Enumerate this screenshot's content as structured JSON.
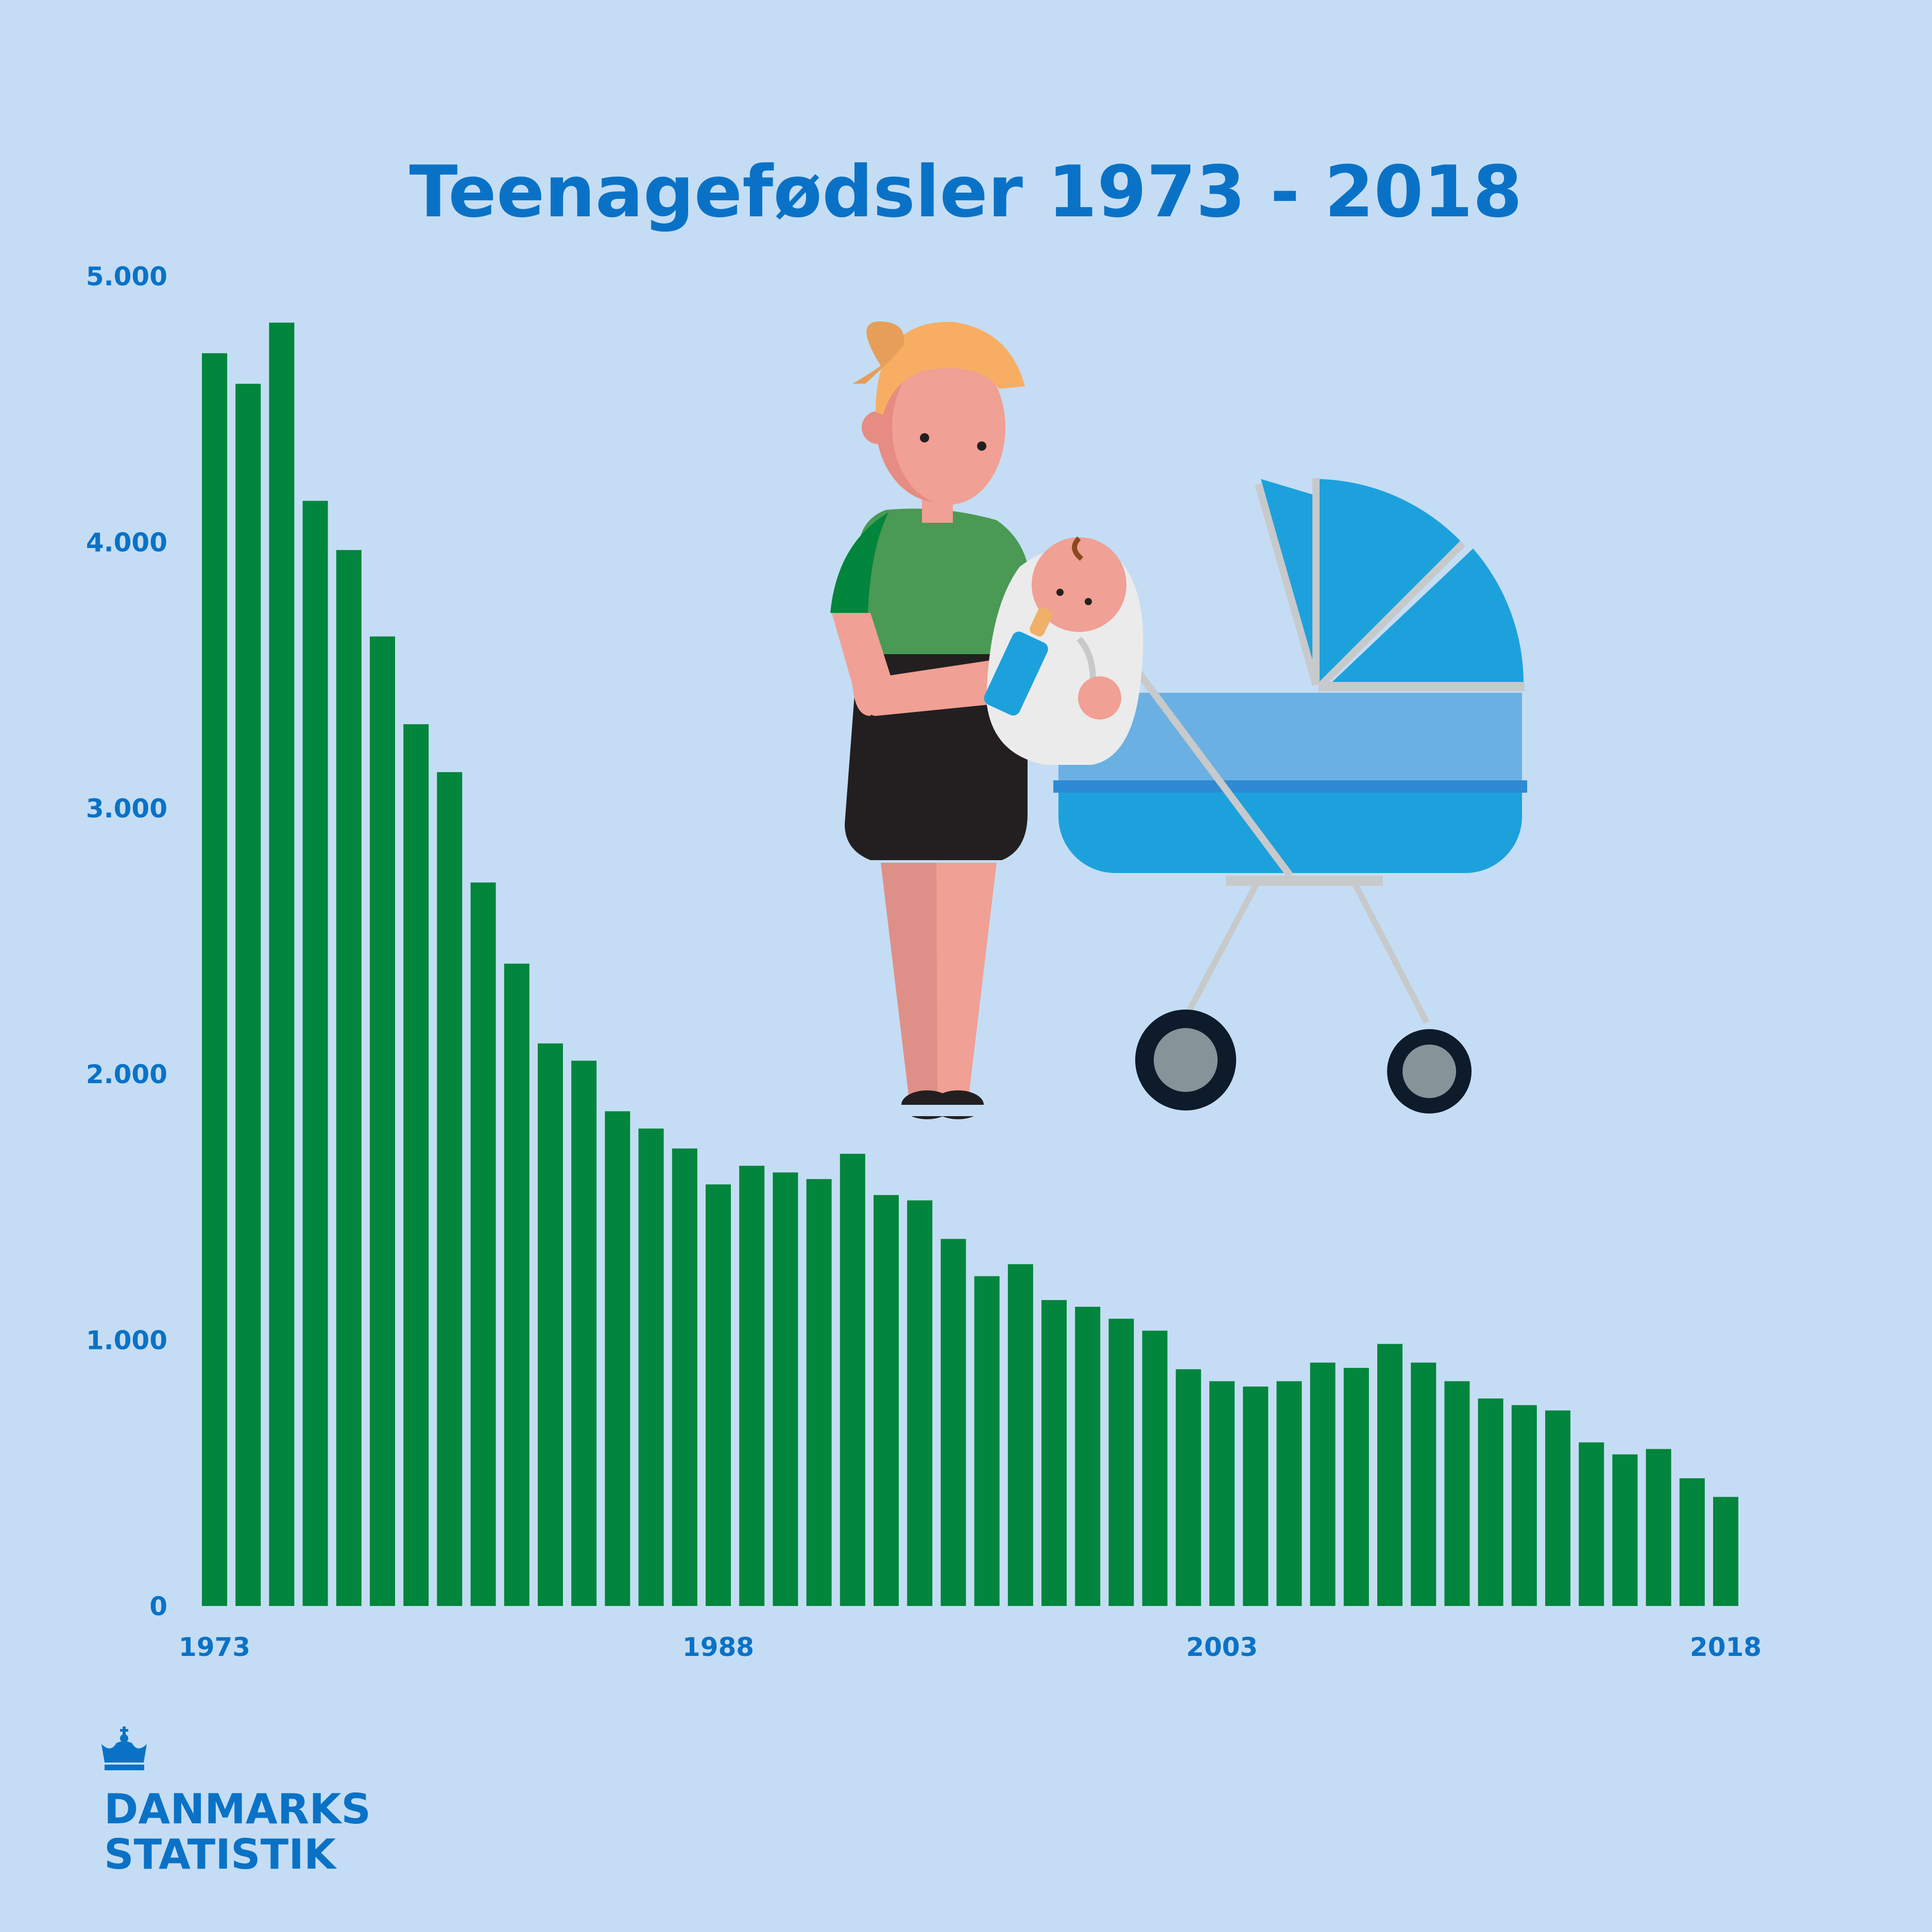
{
  "chart_data": {
    "type": "bar",
    "title": "Teenagefødsler 1973 - 2018",
    "xlabel": "",
    "ylabel": "",
    "ylim": [
      0,
      5000
    ],
    "y_ticks": [
      0,
      1000,
      2000,
      3000,
      4000,
      5000
    ],
    "y_tick_labels": [
      "0",
      "1.000",
      "2.000",
      "3.000",
      "4.000",
      "5.000"
    ],
    "x_tick_labels": [
      "1973",
      "1988",
      "2003",
      "2018"
    ],
    "grid": false,
    "categories": [
      1973,
      1974,
      1975,
      1976,
      1977,
      1978,
      1979,
      1980,
      1981,
      1982,
      1983,
      1984,
      1985,
      1986,
      1987,
      1988,
      1989,
      1990,
      1991,
      1992,
      1993,
      1994,
      1995,
      1996,
      1997,
      1998,
      1999,
      2000,
      2001,
      2002,
      2003,
      2004,
      2005,
      2006,
      2007,
      2008,
      2009,
      2010,
      2011,
      2012,
      2013,
      2014,
      2015,
      2016,
      2017,
      2018
    ],
    "values": [
      4710,
      4595,
      4825,
      4155,
      3970,
      3645,
      3315,
      3135,
      2720,
      2415,
      2115,
      2050,
      1860,
      1795,
      1720,
      1585,
      1655,
      1630,
      1605,
      1700,
      1545,
      1525,
      1380,
      1240,
      1285,
      1150,
      1125,
      1080,
      1035,
      890,
      845,
      825,
      845,
      915,
      895,
      985,
      915,
      845,
      780,
      755,
      735,
      615,
      570,
      590,
      480,
      410
    ],
    "colors": {
      "bar": "#02853c",
      "axis_text": "#0a72c6",
      "background": "#c4ddf4"
    }
  },
  "brand": {
    "line1": "DANMARKS",
    "line2": "STATISTIK",
    "logo_icon": "crown-icon"
  },
  "illustration": {
    "icon": "teen-mother-with-baby-and-pram-icon"
  }
}
